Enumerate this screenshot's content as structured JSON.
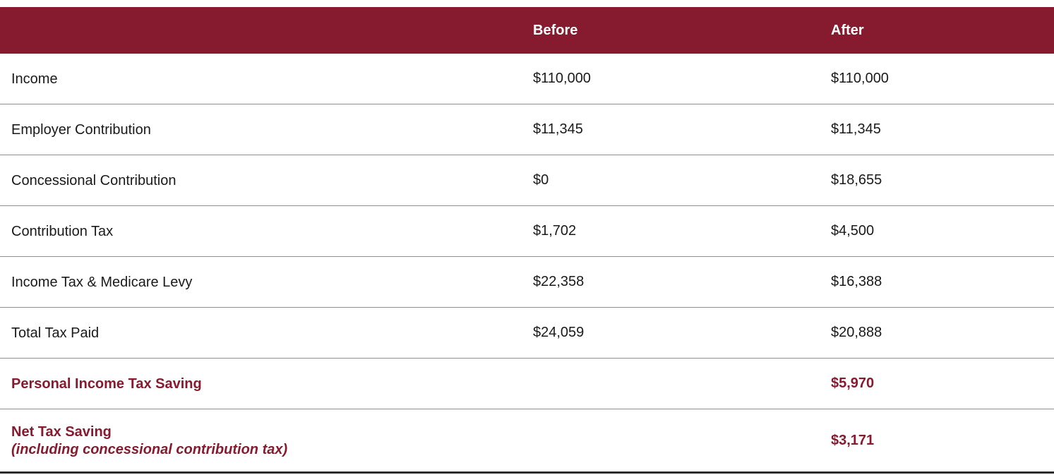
{
  "header": {
    "label_col": "",
    "before": "Before",
    "after": "After"
  },
  "rows": [
    {
      "label": "Income",
      "before": "$110,000",
      "after": "$110,000",
      "highlight": false
    },
    {
      "label": "Employer Contribution",
      "before": "$11,345",
      "after": "$11,345",
      "highlight": false
    },
    {
      "label": "Concessional Contribution",
      "before": "$0",
      "after": "$18,655",
      "highlight": false
    },
    {
      "label": "Contribution Tax",
      "before": "$1,702",
      "after": "$4,500",
      "highlight": false
    },
    {
      "label": "Income Tax & Medicare Levy",
      "before": "$22,358",
      "after": "$16,388",
      "highlight": false
    },
    {
      "label": "Total Tax Paid",
      "before": "$24,059",
      "after": "$20,888",
      "highlight": false
    },
    {
      "label": "Personal Income Tax Saving",
      "before": "",
      "after": "$5,970",
      "highlight": true
    },
    {
      "label": "Net Tax Saving",
      "sublabel": "(including concessional contribution tax)",
      "before": "",
      "after": "$3,171",
      "highlight": true,
      "tall": true
    }
  ],
  "colors": {
    "header_bg": "#861B2F",
    "header_text": "#ffffff",
    "highlight_text": "#861B2F",
    "body_text": "#1a1a1a",
    "row_divider": "#8f8f8f",
    "bottom_border": "#2d2d2d"
  }
}
